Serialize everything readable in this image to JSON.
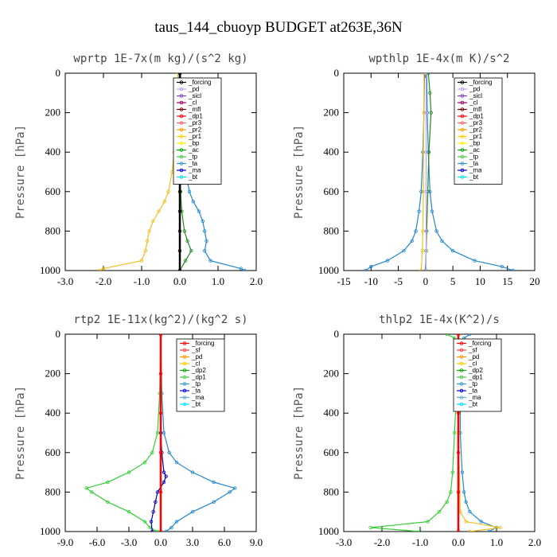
{
  "figure_title": "taus_144_cbuoyp  BUDGET at263E,36N",
  "y_axis_label": "Pressure [hPa]",
  "chart_data": [
    {
      "type": "line",
      "title": "wprtp  1E-7x(m kg)/(s^2 kg)",
      "xlabel": "",
      "ylabel": "Pressure [hPa]",
      "xlim": [
        -3.0,
        2.0
      ],
      "ylim": [
        1000,
        0
      ],
      "x_ticks": [
        "-3.0",
        "-2.0",
        "-1.0",
        "0.0",
        "1.0",
        "2.0"
      ],
      "x_tick_values": [
        -3,
        -2,
        -1,
        0,
        1,
        2
      ],
      "y_ticks": [
        "0",
        "200",
        "400",
        "600",
        "800",
        "1000"
      ],
      "legend": [
        "_forcing",
        "_pd",
        "_sicl",
        "_cl",
        "_mfl",
        "_dp1",
        "_pr3",
        "_pr2",
        "_pr1",
        "_bp",
        "_ac",
        "_tp",
        "_ta",
        "_ma",
        "_bt"
      ],
      "legend_colors": [
        "#000000",
        "#c0a0ff",
        "#8040c0",
        "#a00060",
        "#800000",
        "#ff0000",
        "#ff6060",
        "#ff9900",
        "#ffcc00",
        "#ffee00",
        "#00a000",
        "#44cc44",
        "#3399cc",
        "#0000cc",
        "#00ddff"
      ],
      "series": [
        {
          "name": "_pr1",
          "color": "#f0c020",
          "pressure": [
            0,
            100,
            200,
            300,
            400,
            500,
            600,
            650,
            700,
            750,
            800,
            850,
            900,
            950,
            990,
            1000
          ],
          "values": [
            -0.05,
            -0.05,
            -0.08,
            -0.1,
            -0.15,
            -0.2,
            -0.3,
            -0.4,
            -0.55,
            -0.7,
            -0.8,
            -0.85,
            -0.9,
            -1.0,
            -2.0,
            -2.1
          ]
        },
        {
          "name": "_bp",
          "color": "#2288cc",
          "pressure": [
            0,
            100,
            200,
            300,
            400,
            500,
            600,
            650,
            700,
            750,
            800,
            850,
            900,
            950,
            990,
            1000
          ],
          "values": [
            0.02,
            0.03,
            0.05,
            0.08,
            0.12,
            0.15,
            0.25,
            0.35,
            0.5,
            0.6,
            0.65,
            0.7,
            0.65,
            0.8,
            1.6,
            1.7
          ]
        },
        {
          "name": "_ac",
          "color": "#228822",
          "pressure": [
            0,
            200,
            400,
            600,
            700,
            800,
            850,
            900,
            950,
            1000
          ],
          "values": [
            0.0,
            0.0,
            0.01,
            0.02,
            0.05,
            0.12,
            0.2,
            0.3,
            0.15,
            0.0
          ]
        },
        {
          "name": "_forcing",
          "color": "#000000",
          "pressure": [
            0,
            100,
            200,
            300,
            400,
            500,
            600,
            700,
            800,
            900,
            1000
          ],
          "values": [
            0,
            0,
            0,
            0,
            0,
            0,
            0,
            0,
            0,
            0,
            0
          ]
        }
      ]
    },
    {
      "type": "line",
      "title": "wpthlp  1E-4x(m K)/s^2",
      "xlabel": "",
      "ylabel": "Pressure [hPa]",
      "xlim": [
        -15,
        20
      ],
      "ylim": [
        1000,
        0
      ],
      "x_ticks": [
        "-15",
        "-10",
        "-5",
        "0",
        "5",
        "10",
        "15",
        "20"
      ],
      "x_tick_values": [
        -15,
        -10,
        -5,
        0,
        5,
        10,
        15,
        20
      ],
      "y_ticks": [
        "0",
        "200",
        "400",
        "600",
        "800",
        "1000"
      ],
      "legend": [
        "_forcing",
        "_pd",
        "_sicl",
        "_cl",
        "_mfl",
        "_dp1",
        "_pr3",
        "_pr2",
        "_pr1",
        "_bp",
        "_ac",
        "_tp",
        "_ta",
        "_ma",
        "_bt"
      ],
      "legend_colors": [
        "#000000",
        "#c0a0ff",
        "#8040c0",
        "#a00060",
        "#800000",
        "#ff0000",
        "#ff6060",
        "#ff9900",
        "#ffcc00",
        "#ffee00",
        "#00a000",
        "#44cc44",
        "#3399cc",
        "#0000cc",
        "#00ddff"
      ],
      "series": [
        {
          "name": "_bp",
          "color": "#2288cc",
          "pressure": [
            0,
            200,
            400,
            600,
            700,
            800,
            850,
            900,
            950,
            980,
            1000
          ],
          "values": [
            0.2,
            0.3,
            0.5,
            0.8,
            1.2,
            2.0,
            3.0,
            5.0,
            9.0,
            14.0,
            16.0
          ]
        },
        {
          "name": "_tp",
          "color": "#2288cc",
          "pressure": [
            0,
            200,
            400,
            600,
            700,
            800,
            850,
            900,
            950,
            980,
            1000
          ],
          "values": [
            -0.2,
            -0.3,
            -0.5,
            -0.8,
            -1.2,
            -1.8,
            -2.5,
            -4.0,
            -7.0,
            -10.0,
            -11.0
          ]
        },
        {
          "name": "_ac",
          "color": "#228822",
          "pressure": [
            0,
            100,
            200,
            400,
            600,
            800,
            900,
            1000
          ],
          "values": [
            0.5,
            0.8,
            1.0,
            0.6,
            0.4,
            0.2,
            0.1,
            0.0
          ]
        },
        {
          "name": "_pr1",
          "color": "#f0c020",
          "pressure": [
            0,
            200,
            400,
            600,
            800,
            900,
            1000
          ],
          "values": [
            -0.3,
            -0.3,
            -0.4,
            -0.4,
            -0.5,
            -0.6,
            -0.8
          ]
        },
        {
          "name": "_pd",
          "color": "#c0a0ff",
          "pressure": [
            0,
            200,
            400,
            600,
            800,
            1000
          ],
          "values": [
            0.1,
            0.1,
            0.1,
            0.1,
            0.1,
            0.1
          ]
        }
      ]
    },
    {
      "type": "line",
      "title": "rtp2  1E-11x(kg^2)/(kg^2 s)",
      "xlabel": "",
      "ylabel": "Pressure [hPa]",
      "xlim": [
        -9.0,
        9.0
      ],
      "ylim": [
        1000,
        0
      ],
      "x_ticks": [
        "-9.0",
        "-6.0",
        "-3.0",
        "0.0",
        "3.0",
        "6.0",
        "9.0"
      ],
      "x_tick_values": [
        -9,
        -6,
        -3,
        0,
        3,
        6,
        9
      ],
      "y_ticks": [
        "0",
        "200",
        "400",
        "600",
        "800",
        "1000"
      ],
      "legend": [
        "_forcing",
        "_sf",
        "_pd",
        "_cl",
        "_dp2",
        "_dp1",
        "_tp",
        "_ta",
        "_ma",
        "_bt"
      ],
      "legend_colors": [
        "#ff0000",
        "#ff4040",
        "#ff9900",
        "#ffcc00",
        "#00aa00",
        "#44cc44",
        "#3399cc",
        "#0000cc",
        "#66aacc",
        "#00ddff"
      ],
      "series": [
        {
          "name": "_dp1",
          "color": "#33cc33",
          "pressure": [
            0,
            300,
            500,
            600,
            650,
            700,
            750,
            780,
            800,
            850,
            900,
            950,
            980,
            1000
          ],
          "values": [
            0,
            -0.1,
            -0.3,
            -0.8,
            -1.5,
            -3.0,
            -5.0,
            -7.0,
            -6.5,
            -5.0,
            -3.0,
            -1.5,
            -1.0,
            -0.3
          ]
        },
        {
          "name": "_tp",
          "color": "#2288cc",
          "pressure": [
            0,
            300,
            500,
            600,
            650,
            700,
            750,
            780,
            800,
            850,
            900,
            950,
            980,
            1000
          ],
          "values": [
            0,
            0.1,
            0.3,
            0.8,
            1.5,
            3.0,
            5.0,
            7.0,
            6.5,
            5.0,
            3.0,
            1.5,
            1.0,
            0.5
          ]
        },
        {
          "name": "_ta",
          "color": "#0000aa",
          "pressure": [
            0,
            500,
            600,
            700,
            720,
            750,
            800,
            850,
            900,
            950,
            1000
          ],
          "values": [
            0,
            0,
            0.1,
            0.3,
            0.5,
            0.3,
            -0.3,
            -0.5,
            -0.7,
            -0.9,
            -0.8
          ]
        },
        {
          "name": "_forcing",
          "color": "#ff0000",
          "pressure": [
            0,
            200,
            400,
            600,
            800,
            1000
          ],
          "values": [
            0,
            0,
            0,
            0,
            0,
            0
          ]
        }
      ]
    },
    {
      "type": "line",
      "title": "thlp2  1E-4x(K^2)/s",
      "xlabel": "",
      "ylabel": "Pressure [hPa]",
      "xlim": [
        -3.0,
        2.0
      ],
      "ylim": [
        1000,
        0
      ],
      "x_ticks": [
        "-3.0",
        "-2.0",
        "-1.0",
        "0.0",
        "1.0",
        "2.0"
      ],
      "x_tick_values": [
        -3,
        -2,
        -1,
        0,
        1,
        2
      ],
      "y_ticks": [
        "0",
        "200",
        "400",
        "600",
        "800",
        "1000"
      ],
      "legend": [
        "_forcing",
        "_sf",
        "_pd",
        "_cl",
        "_dp2",
        "_dp1",
        "_tp",
        "_ta",
        "_ma",
        "_bt"
      ],
      "legend_colors": [
        "#ff0000",
        "#ff4040",
        "#ff9900",
        "#ffcc00",
        "#00aa00",
        "#44cc44",
        "#3399cc",
        "#0000cc",
        "#66aacc",
        "#00ddff"
      ],
      "series": [
        {
          "name": "_dp1",
          "color": "#33cc33",
          "pressure": [
            0,
            20,
            100,
            300,
            500,
            700,
            800,
            850,
            900,
            950,
            980,
            1000
          ],
          "values": [
            -0.3,
            -0.1,
            -0.05,
            -0.05,
            -0.1,
            -0.15,
            -0.2,
            -0.3,
            -0.5,
            -0.8,
            -2.3,
            -1.0
          ]
        },
        {
          "name": "_tp",
          "color": "#2288cc",
          "pressure": [
            0,
            20,
            100,
            300,
            500,
            700,
            800,
            850,
            900,
            950,
            980,
            1000
          ],
          "values": [
            0.3,
            0.15,
            0.05,
            0.05,
            0.05,
            0.1,
            0.15,
            0.2,
            0.3,
            0.6,
            1.0,
            0.8
          ]
        },
        {
          "name": "_pd",
          "color": "#f0c020",
          "pressure": [
            0,
            500,
            900,
            950,
            980,
            1000
          ],
          "values": [
            0,
            0,
            0.05,
            0.2,
            1.1,
            0.3
          ]
        },
        {
          "name": "_forcing",
          "color": "#ff0000",
          "pressure": [
            0,
            200,
            400,
            600,
            800,
            1000
          ],
          "values": [
            0,
            0,
            0,
            0,
            0,
            0
          ]
        }
      ]
    }
  ]
}
